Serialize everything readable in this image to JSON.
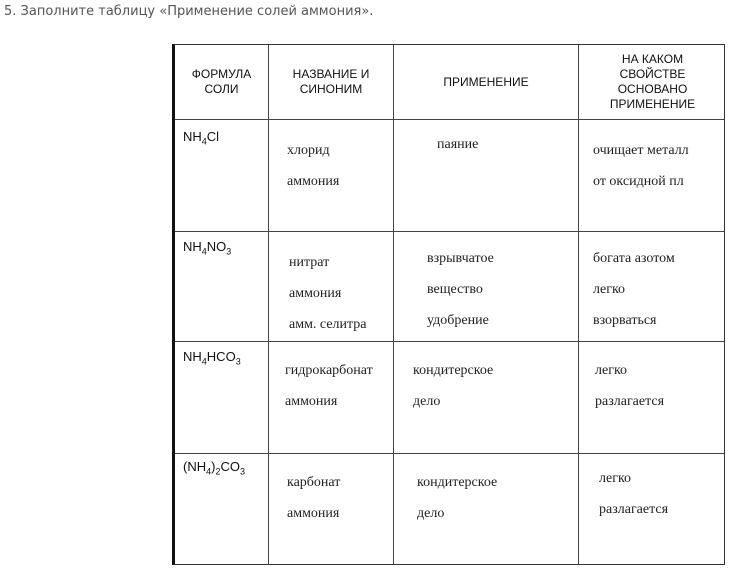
{
  "task": "5. Заполните таблицу «Применение солей аммония».",
  "headers": [
    "ФОРМУЛА СОЛИ",
    "НАЗВАНИЕ И СИНОНИМ",
    "ПРИМЕНЕНИЕ",
    "НА КАКОМ СВОЙСТВЕ ОСНОВАНО ПРИМЕНЕНИЕ"
  ],
  "rows": [
    {
      "formula": {
        "a": "NH",
        "b": "4",
        "c": "Cl",
        "d": "",
        "e": ""
      },
      "name": [
        "хлорид",
        "аммония"
      ],
      "use": [
        "паяние"
      ],
      "property": [
        "очищает металл",
        "от оксидной пл"
      ]
    },
    {
      "formula": {
        "a": "NH",
        "b": "4",
        "c": "NO",
        "d": "3",
        "e": ""
      },
      "name": [
        "нитрат",
        "аммония",
        "амм. селитра"
      ],
      "use": [
        "взрывчатое",
        "вещество",
        "удобрение"
      ],
      "property": [
        "богата азотом",
        "легко",
        "взорваться"
      ]
    },
    {
      "formula": {
        "a": "NH",
        "b": "4",
        "c": "HCO",
        "d": "3",
        "e": ""
      },
      "name": [
        "гидрокарбонат",
        "аммония"
      ],
      "use": [
        "кондитерское",
        "дело"
      ],
      "property": [
        "легко",
        "разлагается"
      ]
    },
    {
      "formula": {
        "a": "(NH",
        "b": "4",
        "c": ")",
        "d": "2",
        "e": "CO3"
      },
      "name": [
        "карбонат",
        "аммония"
      ],
      "use": [
        "кондитерское",
        "дело"
      ],
      "property": [
        "легко",
        "разлагается"
      ]
    }
  ]
}
